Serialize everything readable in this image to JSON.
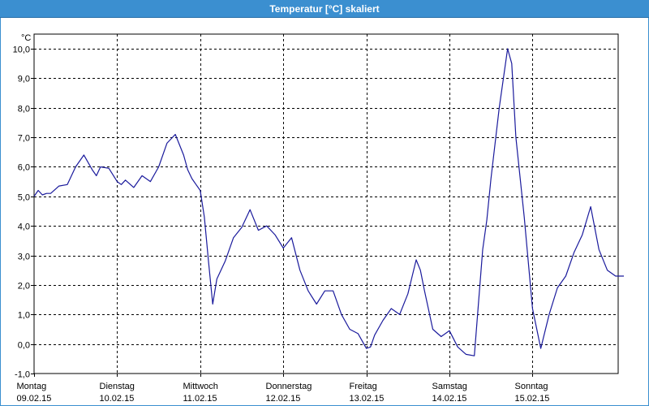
{
  "window": {
    "title": "Temperatur [°C] skaliert"
  },
  "colors": {
    "title_bg": "#3b8fd0",
    "line": "#1a1a9c",
    "grid": "#000000"
  },
  "chart_data": {
    "type": "line",
    "title": "Temperatur [°C] skaliert",
    "ylabel": "°C",
    "xlabel": "",
    "ylim": [
      -1,
      10
    ],
    "yticks": [
      -1,
      0,
      1,
      2,
      3,
      4,
      5,
      6,
      7,
      8,
      9,
      10
    ],
    "ytick_labels": [
      "-1,0",
      "0,0",
      "1,0",
      "2,0",
      "3,0",
      "4,0",
      "5,0",
      "6,0",
      "7,0",
      "8,0",
      "9,0",
      "10,0"
    ],
    "xlim": [
      0,
      7.12
    ],
    "x_unit": "days",
    "grid": true,
    "days": [
      {
        "day": "Montag",
        "date": "09.02.15"
      },
      {
        "day": "Dienstag",
        "date": "10.02.15"
      },
      {
        "day": "Mittwoch",
        "date": "11.02.15"
      },
      {
        "day": "Donnerstag",
        "date": "12.02.15"
      },
      {
        "day": "Freitag",
        "date": "13.02.15"
      },
      {
        "day": "Samstag",
        "date": "14.02.15"
      },
      {
        "day": "Sonntag",
        "date": "15.02.15"
      }
    ],
    "series": [
      {
        "name": "",
        "x": [
          0,
          0.05,
          0.1,
          0.15,
          0.2,
          0.3,
          0.4,
          0.5,
          0.6,
          0.7,
          0.75,
          0.8,
          0.9,
          1.0,
          1.05,
          1.1,
          1.2,
          1.3,
          1.4,
          1.5,
          1.6,
          1.7,
          1.8,
          1.85,
          1.9,
          1.95,
          2.0,
          2.05,
          2.1,
          2.15,
          2.2,
          2.3,
          2.4,
          2.5,
          2.6,
          2.7,
          2.8,
          2.9,
          3.0,
          3.1,
          3.2,
          3.3,
          3.4,
          3.5,
          3.6,
          3.7,
          3.8,
          3.9,
          4.0,
          4.05,
          4.1,
          4.2,
          4.3,
          4.4,
          4.5,
          4.6,
          4.65,
          4.7,
          4.8,
          4.9,
          5.0,
          5.1,
          5.2,
          5.3,
          5.4,
          5.45,
          5.5,
          5.6,
          5.7,
          5.75,
          5.8,
          5.9,
          6.0,
          6.1,
          6.2,
          6.3,
          6.4,
          6.5,
          6.6,
          6.7,
          6.8,
          6.9,
          7.0,
          7.05,
          7.1
        ],
        "y": [
          5.0,
          5.2,
          5.05,
          5.1,
          5.1,
          5.35,
          5.4,
          6.0,
          6.4,
          5.9,
          5.7,
          6.0,
          5.95,
          5.5,
          5.4,
          5.55,
          5.3,
          5.7,
          5.5,
          6.0,
          6.8,
          7.1,
          6.4,
          5.9,
          5.6,
          5.4,
          5.2,
          4.3,
          2.8,
          1.35,
          2.2,
          2.8,
          3.6,
          3.95,
          4.55,
          3.85,
          4.0,
          3.7,
          3.25,
          3.6,
          2.5,
          1.8,
          1.35,
          1.8,
          1.8,
          1.0,
          0.5,
          0.35,
          -0.15,
          -0.1,
          0.3,
          0.8,
          1.2,
          1.0,
          1.7,
          2.85,
          2.5,
          1.8,
          0.5,
          0.25,
          0.45,
          -0.1,
          -0.35,
          -0.4,
          3.2,
          4.2,
          5.6,
          8.0,
          10.0,
          9.5,
          7.0,
          4.3,
          1.2,
          -0.15,
          1.0,
          1.9,
          2.3,
          3.1,
          3.7,
          4.65,
          3.2,
          2.5,
          2.3,
          2.3,
          2.3
        ]
      }
    ]
  }
}
